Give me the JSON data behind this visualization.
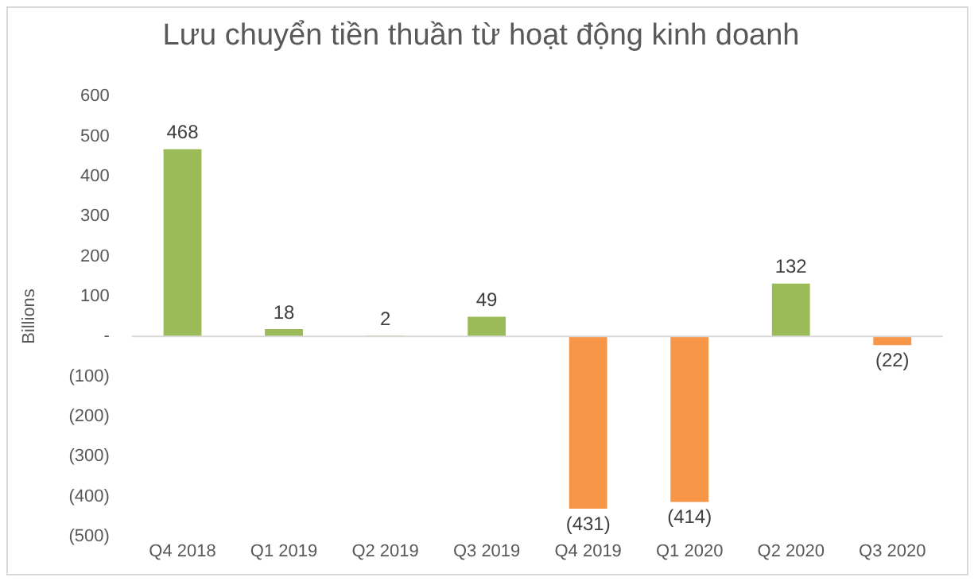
{
  "chart_data": {
    "type": "bar",
    "title": "Lưu chuyển tiền thuần từ hoạt động kinh doanh",
    "ylabel": "Billions",
    "categories": [
      "Q4 2018",
      "Q1 2019",
      "Q2 2019",
      "Q3 2019",
      "Q4 2019",
      "Q1 2020",
      "Q2 2020",
      "Q3 2020"
    ],
    "values": [
      468,
      18,
      2,
      49,
      -431,
      -414,
      132,
      -22
    ],
    "colors": [
      "#9bbb59",
      "#9bbb59",
      "#9bbb59",
      "#9bbb59",
      "#f79646",
      "#f79646",
      "#9bbb59",
      "#f79646"
    ],
    "value_labels": [
      "468",
      "18",
      "2",
      "49",
      "(431)",
      "(414)",
      "132",
      "(22)"
    ],
    "ylim": [
      -500,
      600
    ],
    "yticks": [
      600,
      500,
      400,
      300,
      200,
      100,
      {
        "value": 0,
        "label": "-"
      },
      {
        "value": -100,
        "label": "(100)"
      },
      {
        "value": -200,
        "label": "(200)"
      },
      {
        "value": -300,
        "label": "(300)"
      },
      {
        "value": -400,
        "label": "(400)"
      },
      {
        "value": -500,
        "label": "(500)"
      }
    ],
    "ref_lines": [
      {
        "axis": "y",
        "value": 0,
        "color": "#d9d9d9"
      }
    ],
    "grid": false,
    "legend": false
  }
}
